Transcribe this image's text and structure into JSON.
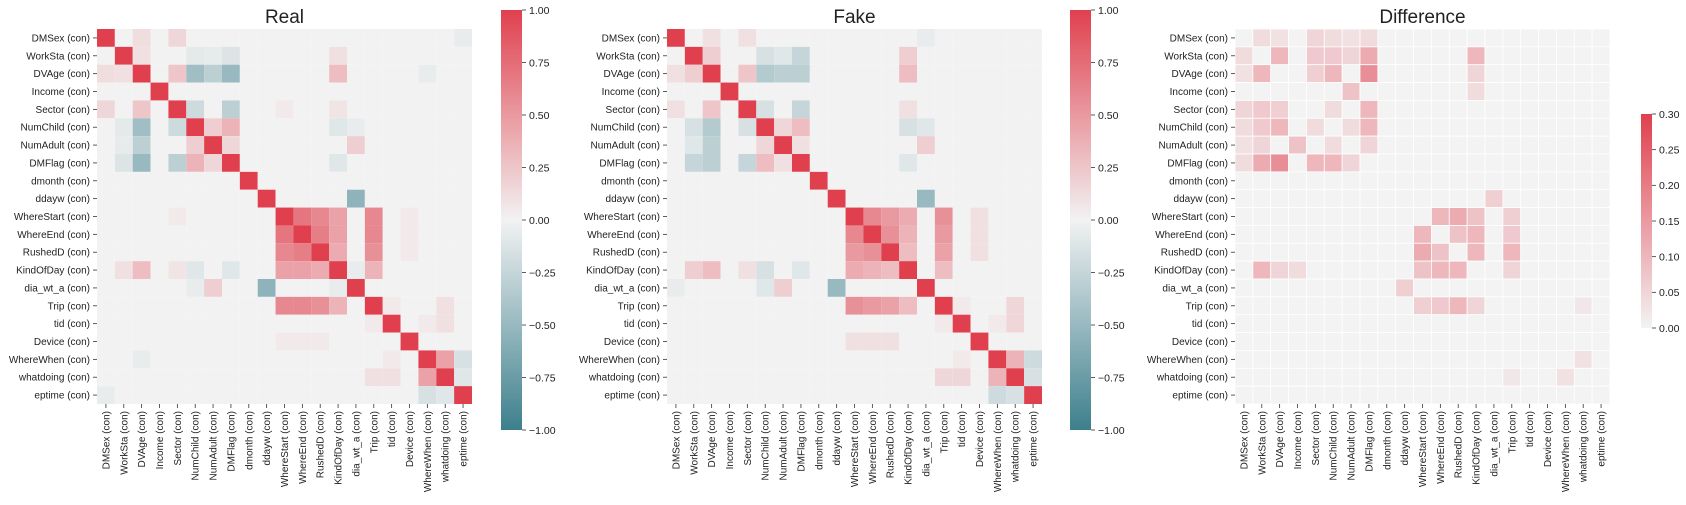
{
  "chart_data": [
    {
      "type": "heatmap",
      "title": "Real",
      "colorbar": {
        "min": -1,
        "max": 1,
        "ticks": [
          "1.00",
          "0.75",
          "0.50",
          "0.25",
          "0.00",
          "−0.25",
          "−0.50",
          "−0.75",
          "−1.00"
        ],
        "tick_values": [
          1,
          0.75,
          0.5,
          0.25,
          0,
          -0.25,
          -0.5,
          -0.75,
          -1
        ]
      },
      "labels": [
        "DMSex (con)",
        "WorkSta (con)",
        "DVAge (con)",
        "Income (con)",
        "Sector (con)",
        "NumChild (con)",
        "NumAdult (con)",
        "DMFlag (con)",
        "dmonth (con)",
        "ddayw (con)",
        "WhereStart (con)",
        "WhereEnd (con)",
        "RushedD (con)",
        "KindOfDay (con)",
        "dia_wt_a (con)",
        "Trip (con)",
        "tid (con)",
        "Device (con)",
        "WhereWhen (con)",
        "whatdoing (con)",
        "eptime (con)"
      ],
      "correlations": [
        [
          0,
          2,
          0.12
        ],
        [
          0,
          4,
          0.15
        ],
        [
          0,
          20,
          -0.05
        ],
        [
          1,
          2,
          0.1
        ],
        [
          1,
          5,
          -0.08
        ],
        [
          1,
          6,
          -0.06
        ],
        [
          1,
          7,
          -0.12
        ],
        [
          1,
          13,
          0.1
        ],
        [
          2,
          4,
          0.25
        ],
        [
          2,
          5,
          -0.45
        ],
        [
          2,
          6,
          -0.3
        ],
        [
          2,
          7,
          -0.5
        ],
        [
          2,
          13,
          0.3
        ],
        [
          2,
          18,
          -0.05
        ],
        [
          4,
          5,
          -0.2
        ],
        [
          4,
          7,
          -0.3
        ],
        [
          4,
          10,
          0.05
        ],
        [
          4,
          13,
          0.08
        ],
        [
          5,
          6,
          0.2
        ],
        [
          5,
          7,
          0.35
        ],
        [
          5,
          13,
          -0.1
        ],
        [
          5,
          14,
          -0.05
        ],
        [
          6,
          7,
          0.15
        ],
        [
          6,
          14,
          0.2
        ],
        [
          7,
          13,
          -0.1
        ],
        [
          9,
          14,
          -0.55
        ],
        [
          10,
          11,
          0.7
        ],
        [
          10,
          12,
          0.6
        ],
        [
          10,
          13,
          0.45
        ],
        [
          10,
          15,
          0.6
        ],
        [
          10,
          17,
          0.05
        ],
        [
          11,
          12,
          0.65
        ],
        [
          11,
          13,
          0.45
        ],
        [
          11,
          15,
          0.6
        ],
        [
          11,
          17,
          0.05
        ],
        [
          12,
          13,
          0.4
        ],
        [
          12,
          15,
          0.55
        ],
        [
          12,
          17,
          0.05
        ],
        [
          13,
          15,
          0.35
        ],
        [
          13,
          14,
          -0.05
        ],
        [
          15,
          16,
          0.05
        ],
        [
          15,
          19,
          0.1
        ],
        [
          16,
          19,
          0.1
        ],
        [
          16,
          18,
          0.05
        ],
        [
          18,
          19,
          0.45
        ],
        [
          18,
          20,
          -0.15
        ],
        [
          19,
          20,
          -0.1
        ]
      ]
    },
    {
      "type": "heatmap",
      "title": "Fake",
      "colorbar": {
        "min": -1,
        "max": 1,
        "ticks": [
          "1.00",
          "0.75",
          "0.50",
          "0.25",
          "0.00",
          "−0.25",
          "−0.50",
          "−0.75",
          "−1.00"
        ],
        "tick_values": [
          1,
          0.75,
          0.5,
          0.25,
          0,
          -0.25,
          -0.5,
          -0.75,
          -1
        ]
      },
      "labels": [
        "DMSex (con)",
        "WorkSta (con)",
        "DVAge (con)",
        "Income (con)",
        "Sector (con)",
        "NumChild (con)",
        "NumAdult (con)",
        "DMFlag (con)",
        "dmonth (con)",
        "ddayw (con)",
        "WhereStart (con)",
        "WhereEnd (con)",
        "RushedD (con)",
        "KindOfDay (con)",
        "dia_wt_a (con)",
        "Trip (con)",
        "tid (con)",
        "Device (con)",
        "WhereWhen (con)",
        "whatdoing (con)",
        "eptime (con)"
      ],
      "correlations": [
        [
          0,
          2,
          0.1
        ],
        [
          0,
          4,
          0.1
        ],
        [
          0,
          14,
          -0.05
        ],
        [
          1,
          2,
          0.2
        ],
        [
          1,
          5,
          -0.15
        ],
        [
          1,
          6,
          -0.1
        ],
        [
          1,
          7,
          -0.25
        ],
        [
          1,
          13,
          0.2
        ],
        [
          2,
          4,
          0.25
        ],
        [
          2,
          5,
          -0.35
        ],
        [
          2,
          6,
          -0.3
        ],
        [
          2,
          7,
          -0.3
        ],
        [
          2,
          13,
          0.3
        ],
        [
          4,
          5,
          -0.15
        ],
        [
          4,
          7,
          -0.25
        ],
        [
          4,
          13,
          0.1
        ],
        [
          5,
          6,
          0.15
        ],
        [
          5,
          7,
          0.3
        ],
        [
          5,
          13,
          -0.15
        ],
        [
          5,
          14,
          -0.1
        ],
        [
          6,
          7,
          0.1
        ],
        [
          6,
          14,
          0.2
        ],
        [
          7,
          13,
          -0.1
        ],
        [
          9,
          14,
          -0.5
        ],
        [
          10,
          11,
          0.6
        ],
        [
          10,
          12,
          0.5
        ],
        [
          10,
          13,
          0.4
        ],
        [
          10,
          15,
          0.55
        ],
        [
          10,
          17,
          0.1
        ],
        [
          11,
          12,
          0.55
        ],
        [
          11,
          13,
          0.35
        ],
        [
          11,
          15,
          0.5
        ],
        [
          11,
          17,
          0.1
        ],
        [
          12,
          13,
          0.3
        ],
        [
          12,
          15,
          0.45
        ],
        [
          12,
          17,
          0.1
        ],
        [
          13,
          15,
          0.3
        ],
        [
          15,
          16,
          0.05
        ],
        [
          15,
          19,
          0.15
        ],
        [
          16,
          19,
          0.15
        ],
        [
          16,
          18,
          0.05
        ],
        [
          18,
          19,
          0.35
        ],
        [
          18,
          20,
          -0.2
        ],
        [
          19,
          20,
          -0.15
        ]
      ]
    },
    {
      "type": "heatmap",
      "title": "Difference",
      "colorbar": {
        "min": 0,
        "max": 0.3,
        "ticks": [
          "0.30",
          "0.25",
          "0.20",
          "0.15",
          "0.10",
          "0.05",
          "0.00"
        ],
        "tick_values": [
          0.3,
          0.25,
          0.2,
          0.15,
          0.1,
          0.05,
          0
        ]
      },
      "labels": [
        "DMSex (con)",
        "WorkSta (con)",
        "DVAge (con)",
        "Income (con)",
        "Sector (con)",
        "NumChild (con)",
        "NumAdult (con)",
        "DMFlag (con)",
        "dmonth (con)",
        "ddayw (con)",
        "WhereStart (con)",
        "WhereEnd (con)",
        "RushedD (con)",
        "KindOfDay (con)",
        "dia_wt_a (con)",
        "Trip (con)",
        "tid (con)",
        "Device (con)",
        "WhereWhen (con)",
        "whatdoing (con)",
        "eptime (con)"
      ],
      "correlations": [
        [
          0,
          1,
          0.04
        ],
        [
          0,
          2,
          0.03
        ],
        [
          0,
          4,
          0.05
        ],
        [
          0,
          5,
          0.04
        ],
        [
          0,
          6,
          0.03
        ],
        [
          0,
          7,
          0.04
        ],
        [
          1,
          2,
          0.1
        ],
        [
          1,
          4,
          0.07
        ],
        [
          1,
          5,
          0.07
        ],
        [
          1,
          6,
          0.05
        ],
        [
          1,
          7,
          0.12
        ],
        [
          1,
          13,
          0.1
        ],
        [
          2,
          4,
          0.06
        ],
        [
          2,
          5,
          0.1
        ],
        [
          2,
          7,
          0.17
        ],
        [
          2,
          13,
          0.05
        ],
        [
          3,
          6,
          0.08
        ],
        [
          3,
          13,
          0.04
        ],
        [
          4,
          5,
          0.04
        ],
        [
          4,
          7,
          0.1
        ],
        [
          5,
          6,
          0.04
        ],
        [
          5,
          7,
          0.1
        ],
        [
          6,
          7,
          0.05
        ],
        [
          9,
          14,
          0.06
        ],
        [
          10,
          11,
          0.1
        ],
        [
          10,
          12,
          0.12
        ],
        [
          10,
          13,
          0.08
        ],
        [
          10,
          15,
          0.06
        ],
        [
          11,
          12,
          0.08
        ],
        [
          11,
          13,
          0.1
        ],
        [
          11,
          15,
          0.07
        ],
        [
          12,
          13,
          0.1
        ],
        [
          12,
          15,
          0.1
        ],
        [
          13,
          15,
          0.05
        ],
        [
          15,
          19,
          0.02
        ],
        [
          18,
          19,
          0.03
        ]
      ]
    }
  ]
}
